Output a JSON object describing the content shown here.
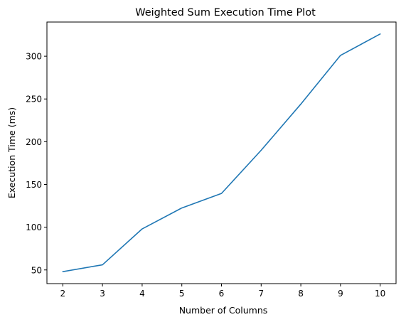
{
  "chart_data": {
    "type": "line",
    "title": "Weighted Sum Execution Time Plot",
    "xlabel": "Number of Columns",
    "ylabel": "Execution Time (ms)",
    "x": [
      2,
      3,
      4,
      5,
      6,
      7,
      8,
      9,
      10
    ],
    "series": [
      {
        "values": [
          48,
          56,
          98,
          122.5,
          139.5,
          190,
          244,
          301,
          326
        ]
      }
    ],
    "xlim": [
      1.6,
      10.4
    ],
    "ylim": [
      34,
      340
    ],
    "xticks": [
      2,
      3,
      4,
      5,
      6,
      7,
      8,
      9,
      10
    ],
    "yticks": [
      50,
      100,
      150,
      200,
      250,
      300
    ],
    "line_color": "#1f77b4",
    "grid": false
  }
}
